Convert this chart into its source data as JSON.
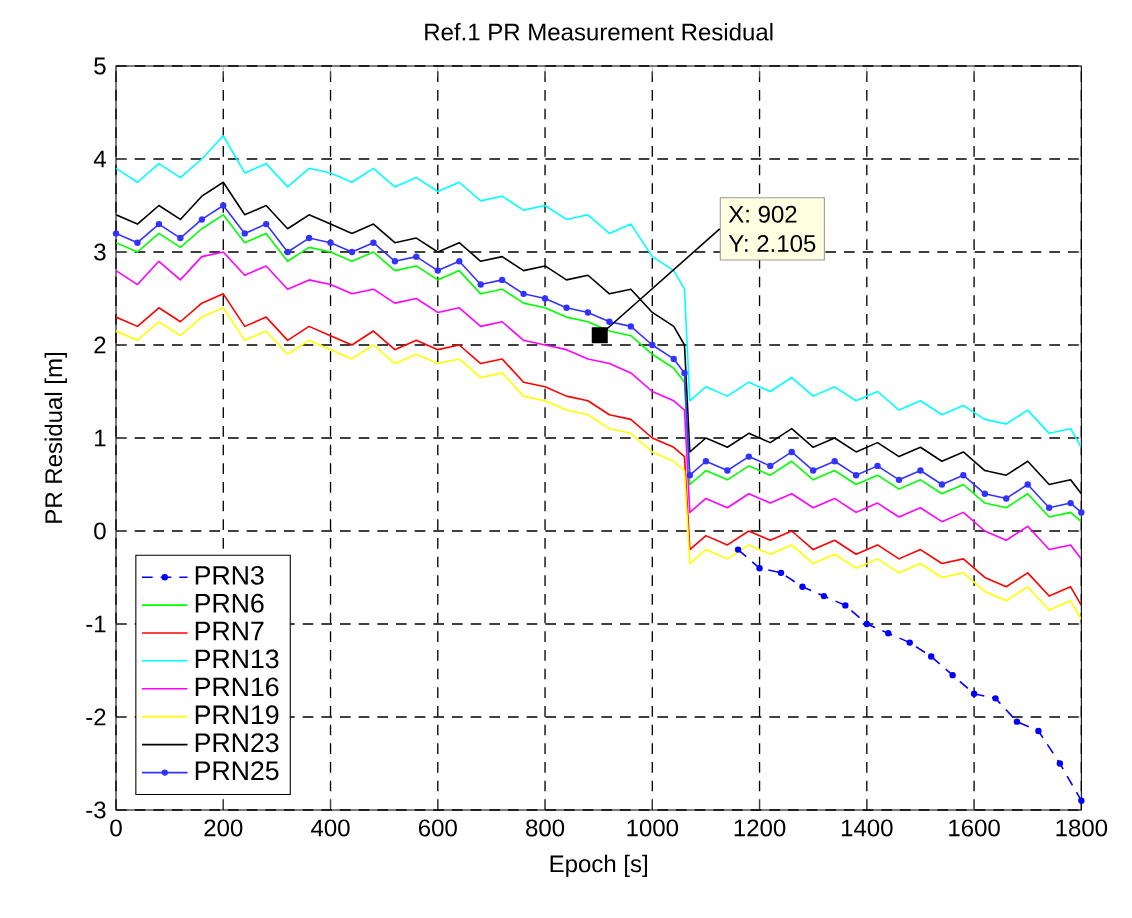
{
  "chart_data": {
    "type": "line",
    "title": "Ref.1 PR Measurement Residual",
    "xlabel": "Epoch [s]",
    "ylabel": "PR Residual [m]",
    "xlim": [
      0,
      1800
    ],
    "ylim": [
      -3,
      5
    ],
    "xticks": [
      0,
      200,
      400,
      600,
      800,
      1000,
      1200,
      1400,
      1600,
      1800
    ],
    "yticks": [
      -3,
      -2,
      -1,
      0,
      1,
      2,
      3,
      4,
      5
    ],
    "grid": true,
    "legend": "bottom left",
    "annotations": [
      {
        "text": "X: 902",
        "x": 902,
        "y": 2.105
      },
      {
        "text": "Y: 2.105",
        "x": 902,
        "y": 2.105
      }
    ],
    "x": [
      0,
      40,
      80,
      120,
      160,
      200,
      240,
      280,
      320,
      360,
      400,
      440,
      480,
      520,
      560,
      600,
      640,
      680,
      720,
      760,
      800,
      840,
      880,
      920,
      960,
      1000,
      1040,
      1060,
      1070,
      1100,
      1140,
      1180,
      1220,
      1260,
      1300,
      1340,
      1380,
      1420,
      1460,
      1500,
      1540,
      1580,
      1620,
      1660,
      1700,
      1740,
      1780,
      1800
    ],
    "series": [
      {
        "name": "PRN3",
        "color": "#0000ff",
        "line_style": "dashed",
        "marker": "circle",
        "x": [
          1160,
          1200,
          1240,
          1280,
          1320,
          1360,
          1400,
          1440,
          1480,
          1520,
          1560,
          1600,
          1640,
          1680,
          1720,
          1760,
          1800
        ],
        "values": [
          -0.2,
          -0.4,
          -0.45,
          -0.6,
          -0.7,
          -0.8,
          -1.0,
          -1.1,
          -1.2,
          -1.35,
          -1.55,
          -1.75,
          -1.8,
          -2.05,
          -2.15,
          -2.5,
          -2.9
        ]
      },
      {
        "name": "PRN6",
        "color": "#00ff00",
        "values": [
          3.1,
          3.0,
          3.2,
          3.05,
          3.25,
          3.4,
          3.1,
          3.2,
          2.9,
          3.05,
          3.0,
          2.9,
          3.0,
          2.8,
          2.85,
          2.7,
          2.8,
          2.55,
          2.6,
          2.45,
          2.4,
          2.3,
          2.25,
          2.15,
          2.1,
          1.9,
          1.75,
          1.6,
          0.5,
          0.65,
          0.55,
          0.7,
          0.6,
          0.75,
          0.55,
          0.65,
          0.5,
          0.6,
          0.45,
          0.55,
          0.4,
          0.5,
          0.3,
          0.25,
          0.4,
          0.15,
          0.2,
          0.1
        ]
      },
      {
        "name": "PRN7",
        "color": "#ff0000",
        "values": [
          2.3,
          2.2,
          2.4,
          2.25,
          2.45,
          2.55,
          2.2,
          2.3,
          2.05,
          2.2,
          2.1,
          2.0,
          2.15,
          1.95,
          2.05,
          1.95,
          2.0,
          1.8,
          1.85,
          1.6,
          1.55,
          1.45,
          1.4,
          1.25,
          1.2,
          1.0,
          0.9,
          0.8,
          -0.2,
          -0.05,
          -0.15,
          0.0,
          -0.1,
          0.0,
          -0.2,
          -0.1,
          -0.25,
          -0.15,
          -0.3,
          -0.2,
          -0.35,
          -0.3,
          -0.5,
          -0.6,
          -0.45,
          -0.7,
          -0.6,
          -0.8
        ]
      },
      {
        "name": "PRN13",
        "color": "#00ffff",
        "values": [
          3.9,
          3.75,
          3.95,
          3.8,
          4.0,
          4.25,
          3.85,
          3.95,
          3.7,
          3.9,
          3.85,
          3.75,
          3.9,
          3.7,
          3.8,
          3.65,
          3.75,
          3.55,
          3.6,
          3.45,
          3.5,
          3.35,
          3.4,
          3.2,
          3.3,
          2.95,
          2.8,
          2.6,
          1.4,
          1.55,
          1.45,
          1.6,
          1.5,
          1.65,
          1.45,
          1.55,
          1.4,
          1.5,
          1.3,
          1.4,
          1.25,
          1.35,
          1.2,
          1.15,
          1.3,
          1.05,
          1.1,
          0.9
        ]
      },
      {
        "name": "PRN16",
        "color": "#ff00ff",
        "values": [
          2.8,
          2.65,
          2.9,
          2.7,
          2.95,
          3.0,
          2.75,
          2.85,
          2.6,
          2.7,
          2.65,
          2.55,
          2.6,
          2.45,
          2.5,
          2.35,
          2.4,
          2.2,
          2.25,
          2.05,
          2.0,
          1.95,
          1.85,
          1.8,
          1.7,
          1.5,
          1.4,
          1.3,
          0.2,
          0.35,
          0.25,
          0.4,
          0.3,
          0.4,
          0.25,
          0.35,
          0.2,
          0.3,
          0.15,
          0.25,
          0.1,
          0.2,
          0.0,
          -0.1,
          0.05,
          -0.2,
          -0.15,
          -0.3
        ]
      },
      {
        "name": "PRN19",
        "color": "#ffff00",
        "values": [
          2.15,
          2.05,
          2.25,
          2.1,
          2.3,
          2.4,
          2.05,
          2.15,
          1.9,
          2.05,
          1.95,
          1.85,
          2.0,
          1.8,
          1.9,
          1.8,
          1.85,
          1.65,
          1.7,
          1.45,
          1.4,
          1.3,
          1.25,
          1.1,
          1.05,
          0.85,
          0.75,
          0.65,
          -0.35,
          -0.2,
          -0.3,
          -0.15,
          -0.25,
          -0.15,
          -0.35,
          -0.25,
          -0.4,
          -0.3,
          -0.45,
          -0.35,
          -0.5,
          -0.45,
          -0.65,
          -0.75,
          -0.6,
          -0.85,
          -0.75,
          -0.95
        ]
      },
      {
        "name": "PRN23",
        "color": "#000000",
        "values": [
          3.4,
          3.3,
          3.5,
          3.35,
          3.6,
          3.75,
          3.4,
          3.5,
          3.25,
          3.4,
          3.3,
          3.2,
          3.3,
          3.1,
          3.15,
          3.0,
          3.1,
          2.9,
          2.95,
          2.8,
          2.85,
          2.7,
          2.75,
          2.55,
          2.6,
          2.35,
          2.2,
          2.0,
          0.85,
          1.0,
          0.9,
          1.05,
          0.95,
          1.1,
          0.9,
          1.0,
          0.85,
          0.95,
          0.8,
          0.9,
          0.75,
          0.85,
          0.65,
          0.6,
          0.75,
          0.5,
          0.55,
          0.4
        ]
      },
      {
        "name": "PRN25",
        "color": "#3333ff",
        "marker": "circle",
        "values": [
          3.2,
          3.1,
          3.3,
          3.15,
          3.35,
          3.5,
          3.2,
          3.3,
          3.0,
          3.15,
          3.1,
          3.0,
          3.1,
          2.9,
          2.95,
          2.8,
          2.9,
          2.65,
          2.7,
          2.55,
          2.5,
          2.4,
          2.35,
          2.25,
          2.2,
          2.0,
          1.85,
          1.7,
          0.6,
          0.75,
          0.65,
          0.8,
          0.7,
          0.85,
          0.65,
          0.75,
          0.6,
          0.7,
          0.55,
          0.65,
          0.5,
          0.6,
          0.4,
          0.35,
          0.5,
          0.25,
          0.3,
          0.2
        ]
      }
    ]
  }
}
